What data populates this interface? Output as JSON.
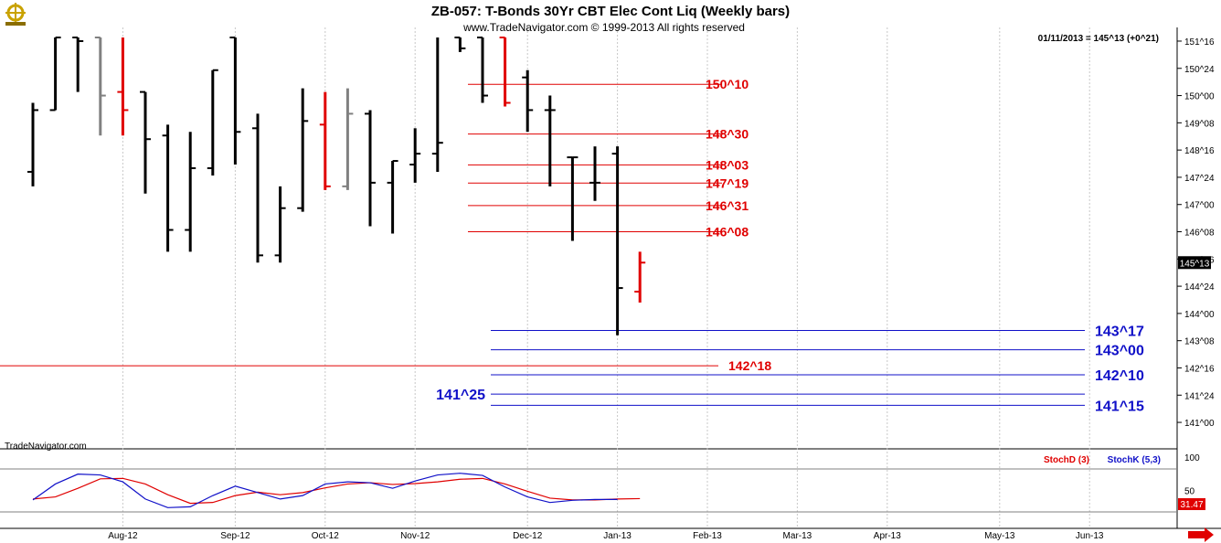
{
  "header": {
    "title": "ZB-057:  T-Bonds 30Yr CBT Elec Cont Liq  (Weekly bars)",
    "copyright": "www.TradeNavigator.com © 1999-2013 All rights reserved",
    "last_bar_readout": "01/11/2013 = 145^13 (+0^21)",
    "watermark": "TradeNavigator.com"
  },
  "colors": {
    "up_bar": "#000000",
    "current_bar": "#e00000",
    "gray_bar": "#808080",
    "resistance": "#e00000",
    "support": "#1010c8",
    "stoch_d": "#e00000",
    "stoch_k": "#1010c8",
    "price_badge_bg": "#000000"
  },
  "chart_data": [
    {
      "type": "ohlc",
      "title": "ZB-057:  T-Bonds 30Yr CBT Elec Cont Liq  (Weekly bars)",
      "y_axis": {
        "unit": "points^32nds",
        "ylim": [
          140.8,
          151.6
        ],
        "tick_labels": [
          "151^16",
          "150^24",
          "150^00",
          "149^08",
          "148^16",
          "147^24",
          "147^00",
          "146^08",
          "145^16",
          "144^24",
          "144^00",
          "143^08",
          "142^16",
          "141^24",
          "141^00"
        ],
        "tick_values": [
          151.5,
          150.75,
          150.0,
          149.25,
          148.5,
          147.75,
          147.0,
          146.25,
          145.5,
          144.75,
          144.0,
          143.25,
          142.5,
          141.75,
          141.0
        ]
      },
      "x_axis": {
        "tick_labels": [
          "Aug-12",
          "Sep-12",
          "Oct-12",
          "Nov-12",
          "Dec-12",
          "Jan-13",
          "Feb-13",
          "Mar-13",
          "Apr-13",
          "May-13",
          "Jun-13"
        ],
        "tick_weeks": [
          4,
          9,
          13,
          17,
          22,
          26,
          30,
          34,
          38,
          43,
          47
        ]
      },
      "current_price": "145^13",
      "bars": [
        {
          "w": 0.0,
          "o": 147.9,
          "h": 149.8,
          "l": 147.5,
          "c": 149.6,
          "col": "black"
        },
        {
          "w": 1.0,
          "o": 149.6,
          "h": 151.6,
          "l": 149.6,
          "c": 151.6,
          "col": "black"
        },
        {
          "w": 2.0,
          "o": 151.6,
          "h": 151.6,
          "l": 150.1,
          "c": 151.5,
          "col": "black"
        },
        {
          "w": 3.0,
          "o": 151.6,
          "h": 151.6,
          "l": 148.9,
          "c": 150.0,
          "col": "gray"
        },
        {
          "w": 4.0,
          "o": 150.1,
          "h": 151.6,
          "l": 148.9,
          "c": 149.6,
          "col": "red"
        },
        {
          "w": 5.0,
          "o": 150.1,
          "h": 150.1,
          "l": 147.3,
          "c": 148.8,
          "col": "black"
        },
        {
          "w": 6.0,
          "o": 148.9,
          "h": 149.2,
          "l": 145.7,
          "c": 146.3,
          "col": "black"
        },
        {
          "w": 7.0,
          "o": 146.3,
          "h": 149.0,
          "l": 145.7,
          "c": 148.0,
          "col": "black"
        },
        {
          "w": 8.0,
          "o": 148.0,
          "h": 150.7,
          "l": 147.8,
          "c": 150.7,
          "col": "black"
        },
        {
          "w": 9.0,
          "o": 151.6,
          "h": 151.6,
          "l": 148.1,
          "c": 149.0,
          "col": "black"
        },
        {
          "w": 10.0,
          "o": 149.1,
          "h": 149.5,
          "l": 145.4,
          "c": 145.6,
          "col": "black"
        },
        {
          "w": 11.0,
          "o": 145.6,
          "h": 147.5,
          "l": 145.4,
          "c": 146.9,
          "col": "black"
        },
        {
          "w": 12.0,
          "o": 146.9,
          "h": 150.2,
          "l": 146.8,
          "c": 149.3,
          "col": "black"
        },
        {
          "w": 13.0,
          "o": 149.2,
          "h": 150.1,
          "l": 147.4,
          "c": 147.5,
          "col": "red"
        },
        {
          "w": 14.0,
          "o": 147.5,
          "h": 150.2,
          "l": 147.4,
          "c": 149.5,
          "col": "gray"
        },
        {
          "w": 15.0,
          "o": 149.5,
          "h": 149.6,
          "l": 146.4,
          "c": 147.6,
          "col": "black"
        },
        {
          "w": 16.0,
          "o": 147.6,
          "h": 148.2,
          "l": 146.2,
          "c": 148.2,
          "col": "black"
        },
        {
          "w": 17.0,
          "o": 148.1,
          "h": 149.1,
          "l": 147.6,
          "c": 148.4,
          "col": "black"
        },
        {
          "w": 18.0,
          "o": 148.4,
          "h": 151.6,
          "l": 147.9,
          "c": 148.7,
          "col": "black"
        },
        {
          "w": 19.0,
          "o": 151.6,
          "h": 151.6,
          "l": 151.2,
          "c": 151.3,
          "col": "black"
        },
        {
          "w": 20.0,
          "o": 151.6,
          "h": 151.6,
          "l": 149.8,
          "c": 150.0,
          "col": "black"
        },
        {
          "w": 21.0,
          "o": 151.6,
          "h": 151.6,
          "l": 149.7,
          "c": 149.8,
          "col": "red"
        },
        {
          "w": 22.0,
          "o": 150.5,
          "h": 150.7,
          "l": 149.0,
          "c": 149.6,
          "col": "black"
        },
        {
          "w": 23.0,
          "o": 149.6,
          "h": 150.0,
          "l": 147.5,
          "c": 149.6,
          "col": "black"
        },
        {
          "w": 24.0,
          "o": 148.3,
          "h": 148.3,
          "l": 146.0,
          "c": 148.3,
          "col": "black"
        },
        {
          "w": 25.0,
          "o": 147.6,
          "h": 148.6,
          "l": 147.1,
          "c": 147.6,
          "col": "black"
        },
        {
          "w": 26.0,
          "o": 148.4,
          "h": 148.6,
          "l": 143.4,
          "c": 144.7,
          "col": "black"
        },
        {
          "w": 27.0,
          "o": 144.6,
          "h": 145.7,
          "l": 144.3,
          "c": 145.4,
          "col": "red"
        }
      ],
      "resistance_levels": [
        {
          "label": "150^10",
          "value": 150.31
        },
        {
          "label": "148^30",
          "value": 148.94
        },
        {
          "label": "148^03",
          "value": 148.09
        },
        {
          "label": "147^19",
          "value": 147.59
        },
        {
          "label": "146^31",
          "value": 146.97
        },
        {
          "label": "146^08",
          "value": 146.25
        },
        {
          "label": "142^18",
          "value": 142.56
        }
      ],
      "support_levels": [
        {
          "label": "143^17",
          "value": 143.53
        },
        {
          "label": "143^00",
          "value": 143.0
        },
        {
          "label": "142^10",
          "value": 142.31
        },
        {
          "label": "141^25",
          "value": 141.78
        },
        {
          "label": "141^15",
          "value": 141.47
        }
      ]
    },
    {
      "type": "line",
      "legend": [
        "StochD (3)",
        "StochK (5,3)"
      ],
      "y_axis": {
        "ylim": [
          0,
          100
        ],
        "tick_labels": [
          "100",
          "50"
        ],
        "tick_values": [
          100,
          50
        ]
      },
      "current_value": "31.47",
      "series": [
        {
          "name": "StochD (3)",
          "weeks": [
            0,
            1,
            2,
            3,
            4,
            5,
            6,
            7,
            8,
            9,
            10,
            11,
            12,
            13,
            14,
            15,
            16,
            17,
            18,
            19,
            20,
            21,
            22,
            23,
            24,
            25,
            26,
            27
          ],
          "values": [
            30,
            35,
            55,
            77,
            78,
            65,
            40,
            20,
            22,
            38,
            46,
            40,
            45,
            56,
            65,
            68,
            64,
            66,
            70,
            76,
            78,
            65,
            48,
            32,
            28,
            28,
            30,
            31
          ]
        },
        {
          "name": "StochK (5,3)",
          "weeks": [
            0,
            1,
            2,
            3,
            4,
            5,
            6,
            7,
            8,
            9,
            10,
            11,
            12,
            13,
            14,
            15,
            16,
            17,
            18,
            19,
            20,
            21,
            22,
            23,
            24,
            25,
            26
          ],
          "values": [
            28,
            65,
            88,
            86,
            70,
            30,
            10,
            12,
            38,
            60,
            45,
            30,
            38,
            65,
            70,
            68,
            55,
            72,
            86,
            90,
            85,
            58,
            35,
            22,
            27,
            29,
            29
          ]
        }
      ]
    }
  ]
}
